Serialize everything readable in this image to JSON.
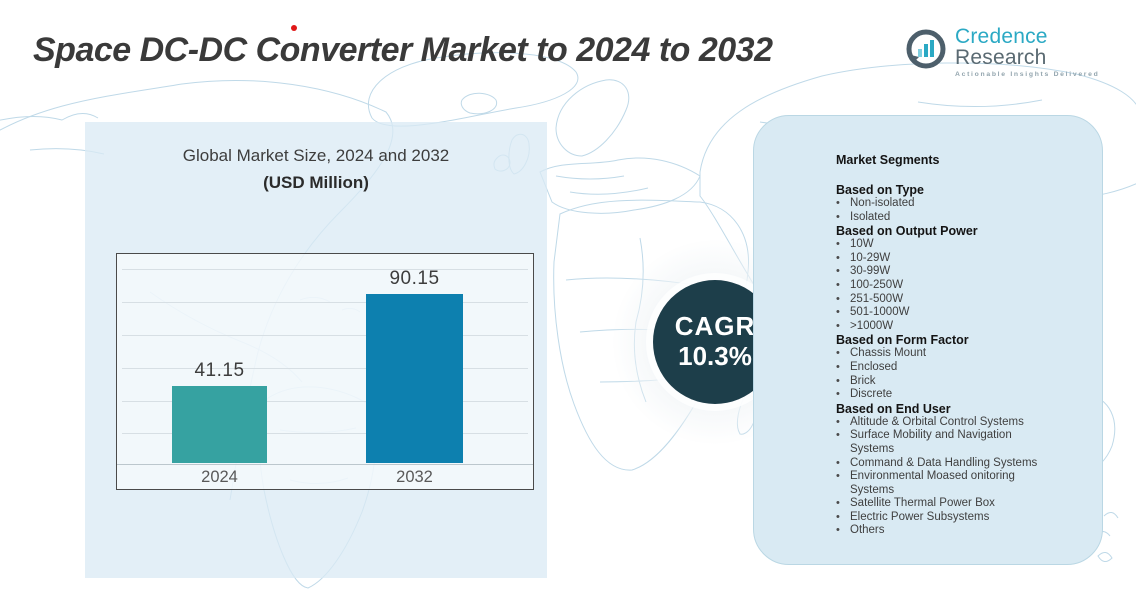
{
  "page_title": "Space DC-DC Converter Market to 2024 to 2032",
  "logo": {
    "brand_primary": "Credence",
    "brand_secondary": "Research",
    "tagline": "Actionable Insights Delivered"
  },
  "chart": {
    "title": "Global Market Size, 2024 and 2032",
    "subtitle": "(USD Million)"
  },
  "chart_data": {
    "type": "bar",
    "title": "Global Market Size, 2024 and 2032",
    "units": "USD Million",
    "categories": [
      "2024",
      "2032"
    ],
    "values": [
      41.15,
      90.15
    ],
    "value_labels": [
      "41.15",
      "90.15"
    ],
    "bar_colors": [
      "#36a2a1",
      "#0d80af"
    ],
    "ylim": [
      0,
      110
    ],
    "grid": true,
    "legend": false
  },
  "cagr": {
    "label": "CAGR",
    "value": "10.3%"
  },
  "segments": {
    "title": "Market Segments",
    "groups": [
      {
        "header": "Based on Type",
        "items": [
          "Non-isolated",
          "Isolated"
        ]
      },
      {
        "header": "Based on Output Power",
        "items": [
          "10W",
          "10-29W",
          "30-99W",
          "100-250W",
          "251-500W",
          "501-1000W",
          ">1000W"
        ]
      },
      {
        "header": "Based on Form Factor",
        "items": [
          "Chassis Mount",
          "Enclosed",
          "Brick",
          "Discrete"
        ]
      },
      {
        "header": "Based on End User",
        "items": [
          "Altitude & Orbital Control Systems",
          "Surface Mobility and Navigation Systems",
          "Command & Data Handling Systems",
          "Environmental Moased onitoring Systems",
          "Satellite Thermal Power Box",
          "Electric Power Subsystems",
          "Others"
        ]
      }
    ]
  },
  "colors": {
    "cagr_circle": "#1d3e4a",
    "left_panel": "#daeaf4",
    "right_panel": "#d9eaf3",
    "map_line": "#bfd9e8",
    "title_text": "#3a3a3a",
    "accent_red": "#e01818",
    "logo_teal": "#2ba9c4"
  }
}
